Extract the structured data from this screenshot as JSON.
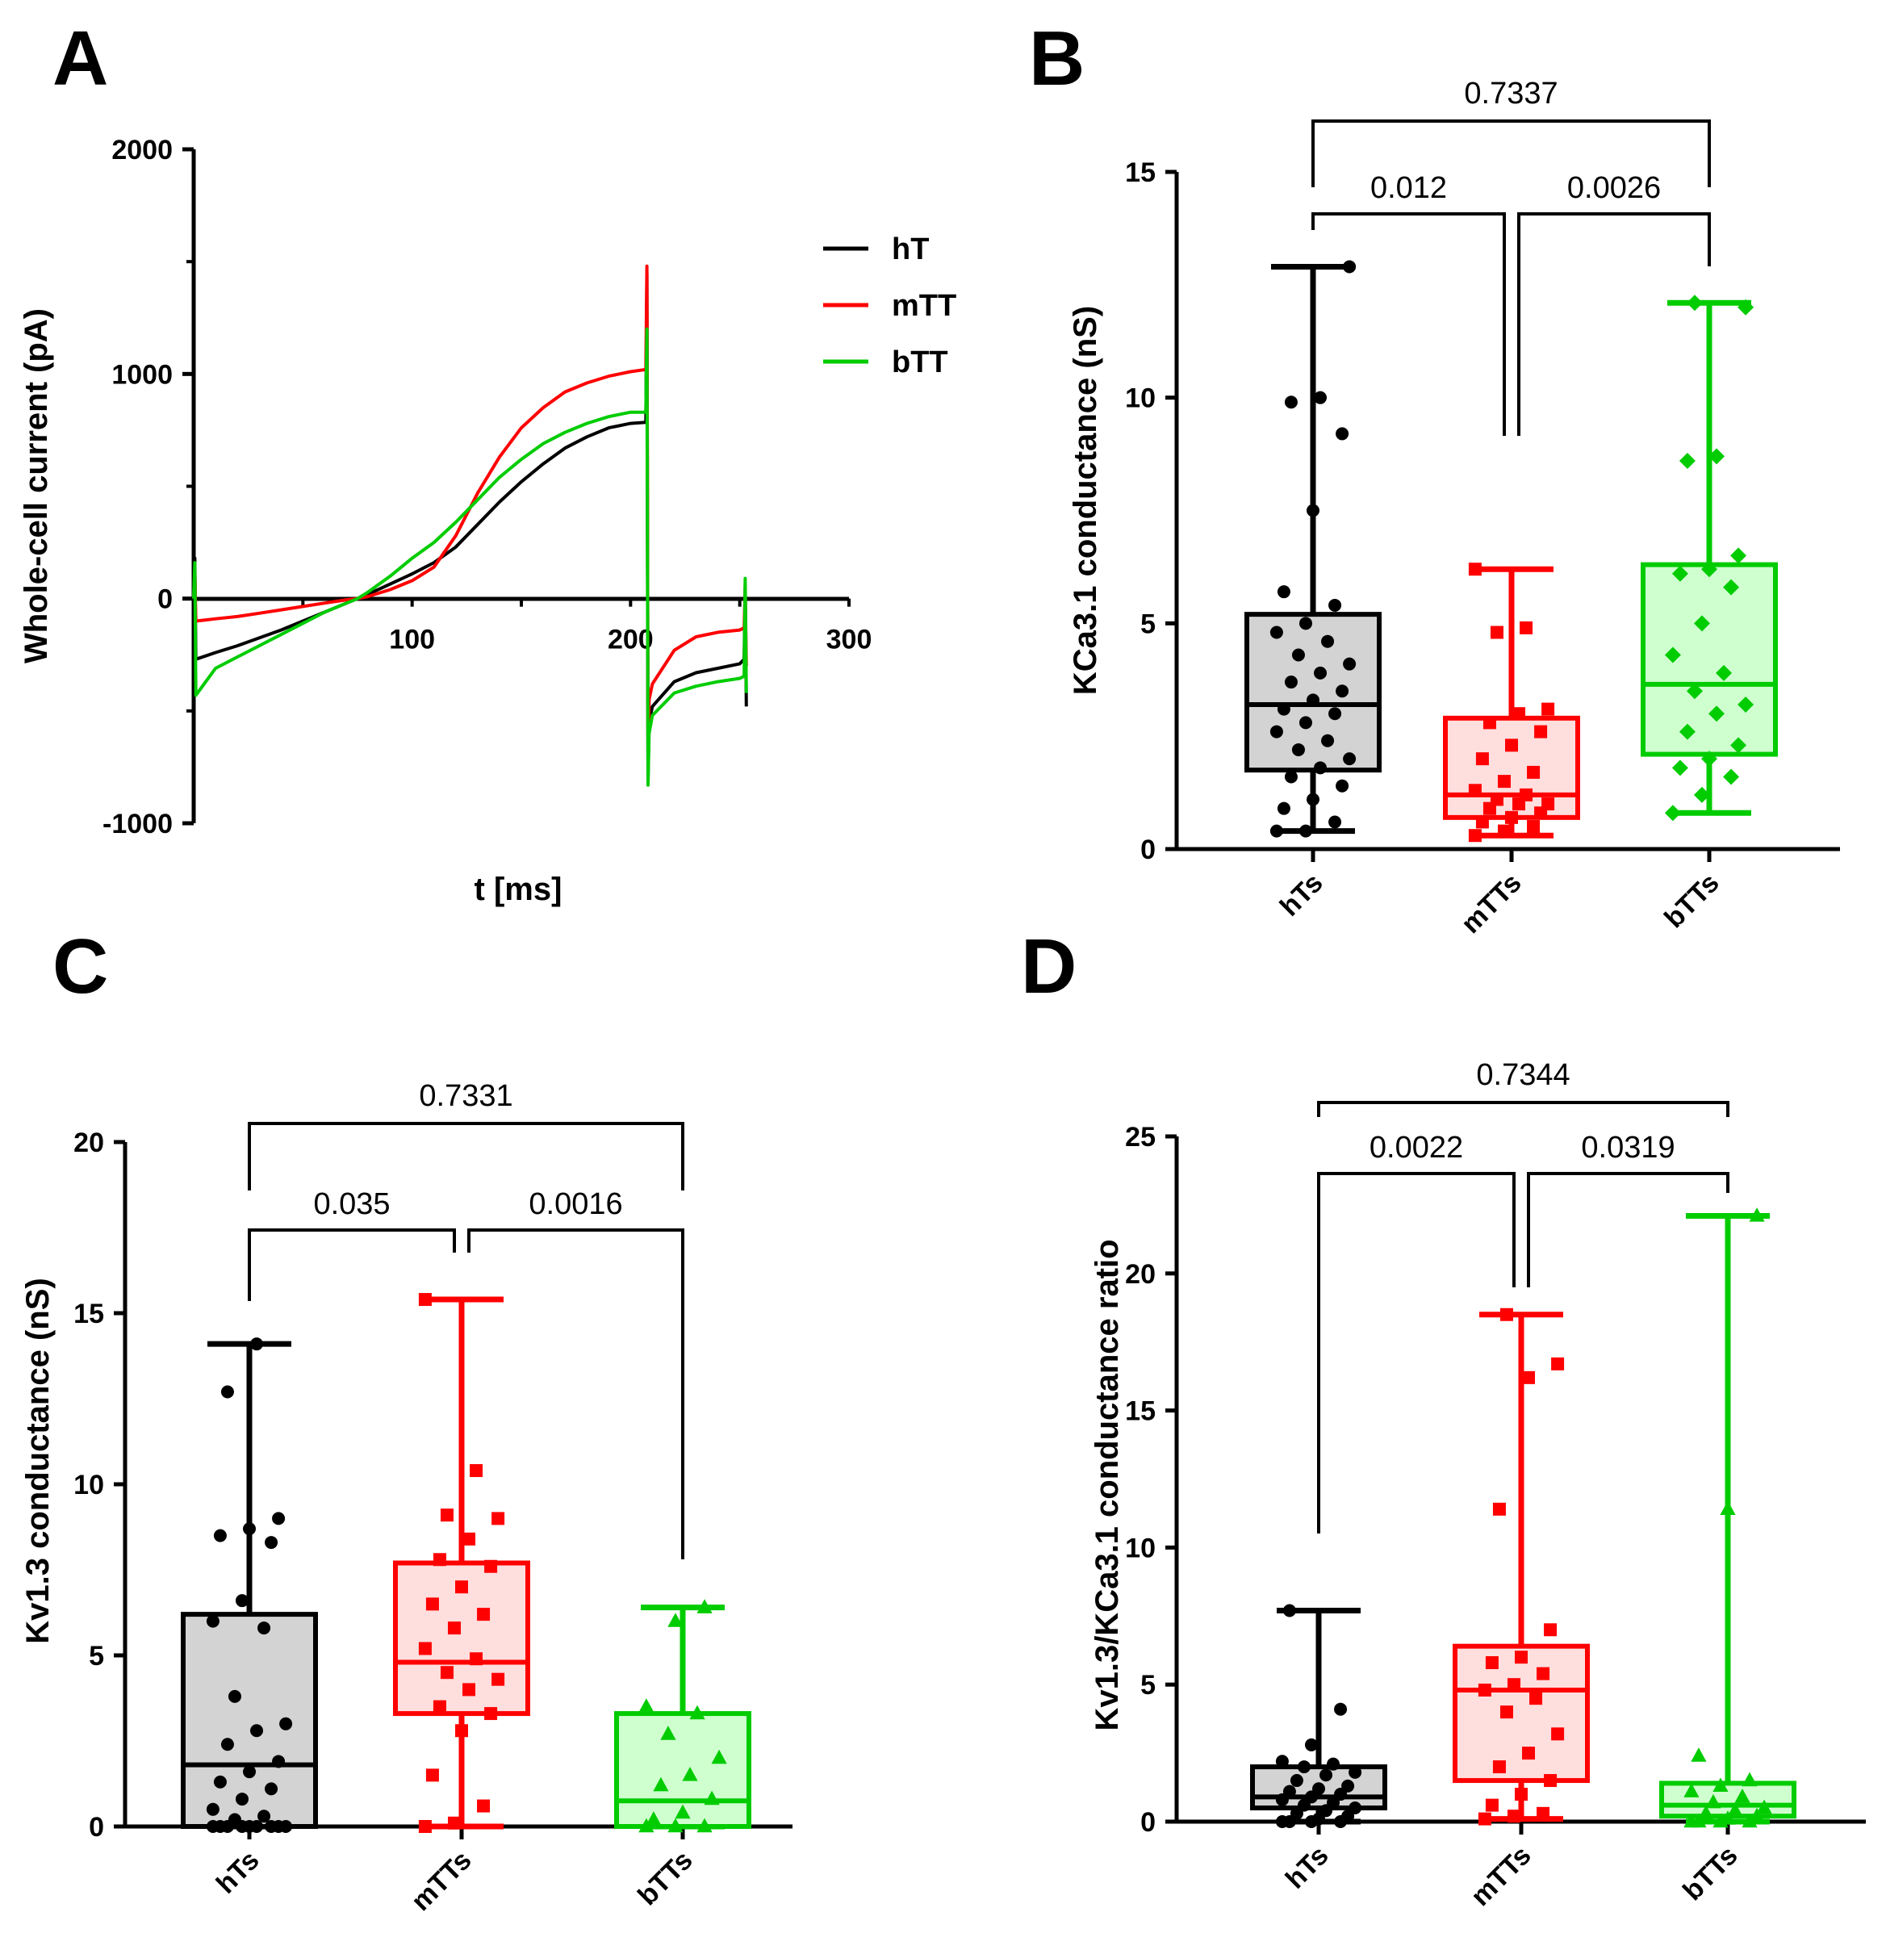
{
  "chart_data": [
    {
      "panel": "A",
      "type": "line",
      "xlabel": "t [ms]",
      "ylabel": "Whole-cell current (pA)",
      "xlim": [
        0,
        300
      ],
      "ylim": [
        -1000,
        2000
      ],
      "xticks": [
        100,
        200,
        300
      ],
      "yticks": [
        -1000,
        0,
        1000,
        2000
      ],
      "legend_position": "top-right",
      "series": [
        {
          "name": "hT",
          "color": "#000000",
          "x": [
            0,
            0.5,
            1,
            10,
            20,
            30,
            40,
            50,
            60,
            70,
            75,
            80,
            90,
            100,
            110,
            120,
            130,
            140,
            150,
            160,
            170,
            180,
            190,
            200,
            207,
            207.5,
            208,
            208.5,
            210,
            220,
            230,
            240,
            250,
            252,
            252.5,
            253
          ],
          "y": [
            0,
            180,
            -270,
            -240,
            -210,
            -175,
            -140,
            -100,
            -60,
            -20,
            0,
            20,
            65,
            110,
            160,
            230,
            330,
            430,
            520,
            600,
            670,
            720,
            760,
            780,
            785,
            1450,
            -800,
            -550,
            -480,
            -370,
            -330,
            -310,
            -290,
            -270,
            60,
            -480
          ]
        },
        {
          "name": "mTT",
          "color": "#ff0000",
          "x": [
            0,
            0.5,
            1,
            10,
            20,
            30,
            40,
            50,
            60,
            70,
            75,
            80,
            90,
            100,
            110,
            120,
            130,
            140,
            150,
            160,
            170,
            180,
            190,
            200,
            207,
            207.5,
            208,
            208.5,
            210,
            220,
            230,
            240,
            250,
            252,
            252.5,
            253
          ],
          "y": [
            0,
            120,
            -100,
            -90,
            -80,
            -65,
            -50,
            -35,
            -20,
            -5,
            0,
            10,
            40,
            80,
            140,
            280,
            470,
            630,
            760,
            850,
            920,
            960,
            990,
            1010,
            1020,
            1480,
            -700,
            -450,
            -380,
            -230,
            -170,
            -150,
            -140,
            -130,
            40,
            -300
          ]
        },
        {
          "name": "bTT",
          "color": "#00cc00",
          "x": [
            0,
            0.5,
            1,
            10,
            20,
            30,
            40,
            50,
            60,
            70,
            75,
            80,
            90,
            100,
            110,
            120,
            130,
            140,
            150,
            160,
            170,
            180,
            190,
            200,
            207,
            207.5,
            208,
            208.5,
            210,
            220,
            230,
            240,
            250,
            252,
            252.5,
            253
          ],
          "y": [
            0,
            160,
            -430,
            -310,
            -260,
            -210,
            -160,
            -110,
            -60,
            -20,
            0,
            30,
            100,
            180,
            250,
            340,
            440,
            540,
            620,
            690,
            740,
            780,
            810,
            830,
            830,
            1200,
            -830,
            -600,
            -520,
            -420,
            -390,
            -370,
            -355,
            -345,
            90,
            -420
          ]
        }
      ]
    },
    {
      "panel": "B",
      "type": "box",
      "ylabel": "KCa3.1 conductance (nS)",
      "ylim": [
        0,
        15
      ],
      "yticks": [
        0,
        5,
        10,
        15
      ],
      "categories": [
        "hTs",
        "mTTs",
        "bTTs"
      ],
      "groups": [
        {
          "name": "hTs",
          "color": "#000000",
          "fill": "#d3d3d3",
          "marker": "circle",
          "min": 0.4,
          "q1": 1.75,
          "median": 3.2,
          "q3": 5.2,
          "max": 12.9,
          "points": [
            0.4,
            0.4,
            0.6,
            0.9,
            1.1,
            1.4,
            1.6,
            1.8,
            2.0,
            2.2,
            2.4,
            2.6,
            2.8,
            3.0,
            3.1,
            3.3,
            3.5,
            3.7,
            3.9,
            4.1,
            4.3,
            4.6,
            4.8,
            5.0,
            5.4,
            5.7,
            7.5,
            9.2,
            9.9,
            10.0,
            12.9
          ]
        },
        {
          "name": "mTTs",
          "color": "#ff0000",
          "fill": "#ffdede",
          "marker": "square",
          "min": 0.3,
          "q1": 0.7,
          "median": 1.2,
          "q3": 2.9,
          "max": 6.2,
          "points": [
            0.3,
            0.4,
            0.5,
            0.6,
            0.7,
            0.8,
            0.9,
            1.0,
            1.0,
            1.1,
            1.2,
            1.3,
            1.5,
            1.7,
            2.0,
            2.3,
            2.6,
            2.8,
            3.0,
            3.1,
            4.8,
            4.9,
            6.2
          ]
        },
        {
          "name": "bTTs",
          "color": "#00cc00",
          "fill": "#cfffcf",
          "marker": "diamond",
          "min": 0.8,
          "q1": 2.1,
          "median": 3.65,
          "q3": 6.3,
          "max": 12.1,
          "points": [
            0.8,
            1.2,
            1.6,
            1.8,
            2.0,
            2.3,
            2.6,
            3.0,
            3.2,
            3.5,
            3.9,
            4.3,
            5.0,
            5.8,
            6.1,
            6.2,
            6.5,
            8.6,
            8.7,
            12.0,
            12.1
          ]
        }
      ],
      "comparisons": [
        {
          "between": [
            "hTs",
            "mTTs"
          ],
          "label": "0.012"
        },
        {
          "between": [
            "mTTs",
            "bTTs"
          ],
          "label": "0.0026"
        },
        {
          "between": [
            "hTs",
            "bTTs"
          ],
          "label": "0.7337"
        }
      ]
    },
    {
      "panel": "C",
      "type": "box",
      "ylabel": "Kv1.3 conductance (nS)",
      "ylim": [
        0,
        20
      ],
      "yticks": [
        0,
        5,
        10,
        15,
        20
      ],
      "categories": [
        "hTs",
        "mTTs",
        "bTTs"
      ],
      "groups": [
        {
          "name": "hTs",
          "color": "#000000",
          "fill": "#d3d3d3",
          "marker": "circle",
          "min": 0,
          "q1": 0,
          "median": 1.8,
          "q3": 6.2,
          "max": 14.1,
          "points": [
            0,
            0,
            0,
            0,
            0,
            0,
            0,
            0,
            0,
            0.2,
            0.3,
            0.5,
            0.8,
            1.1,
            1.3,
            1.6,
            1.9,
            2.4,
            2.8,
            3.0,
            3.8,
            5.8,
            6.0,
            6.6,
            8.3,
            8.5,
            8.7,
            9.0,
            12.7,
            14.1
          ]
        },
        {
          "name": "mTTs",
          "color": "#ff0000",
          "fill": "#ffdede",
          "marker": "square",
          "min": 0,
          "q1": 3.3,
          "median": 4.8,
          "q3": 7.7,
          "max": 15.4,
          "points": [
            0,
            0.1,
            0.6,
            1.5,
            2.8,
            3.3,
            3.5,
            4.0,
            4.3,
            4.5,
            4.9,
            5.2,
            5.8,
            6.2,
            6.5,
            7.0,
            7.6,
            7.8,
            8.4,
            9.0,
            9.1,
            10.4,
            15.4
          ]
        },
        {
          "name": "bTTs",
          "color": "#00cc00",
          "fill": "#cfffcf",
          "marker": "triangle",
          "min": 0,
          "q1": 0,
          "median": 0.75,
          "q3": 3.3,
          "max": 6.4,
          "points": [
            0,
            0,
            0,
            0.2,
            0.4,
            0.8,
            1.2,
            1.5,
            2.0,
            2.7,
            3.3,
            3.5,
            6.0,
            6.4
          ]
        }
      ],
      "comparisons": [
        {
          "between": [
            "hTs",
            "mTTs"
          ],
          "label": "0.035"
        },
        {
          "between": [
            "mTTs",
            "bTTs"
          ],
          "label": "0.0016"
        },
        {
          "between": [
            "hTs",
            "bTTs"
          ],
          "label": "0.7331"
        }
      ]
    },
    {
      "panel": "D",
      "type": "box",
      "ylabel": "Kv1.3/KCa3.1 conductance ratio",
      "ylim": [
        0,
        25
      ],
      "yticks": [
        0,
        5,
        10,
        15,
        20,
        25
      ],
      "categories": [
        "hTs",
        "mTTs",
        "bTTs"
      ],
      "groups": [
        {
          "name": "hTs",
          "color": "#000000",
          "fill": "#d3d3d3",
          "marker": "circle",
          "min": 0,
          "q1": 0.5,
          "median": 0.9,
          "q3": 2.0,
          "max": 7.7,
          "points": [
            0,
            0,
            0,
            0,
            0.1,
            0.2,
            0.3,
            0.4,
            0.5,
            0.6,
            0.7,
            0.8,
            0.9,
            1.0,
            1.1,
            1.2,
            1.3,
            1.5,
            1.7,
            1.8,
            2.0,
            2.1,
            2.2,
            2.8,
            4.1,
            7.7
          ]
        },
        {
          "name": "mTTs",
          "color": "#ff0000",
          "fill": "#ffdede",
          "marker": "square",
          "min": 0.1,
          "q1": 1.5,
          "median": 4.8,
          "q3": 6.4,
          "max": 18.5,
          "points": [
            0.1,
            0.2,
            0.3,
            0.6,
            1.0,
            1.5,
            2.0,
            2.5,
            3.2,
            4.0,
            4.5,
            4.8,
            5.0,
            5.4,
            5.8,
            6.0,
            7.0,
            11.4,
            16.2,
            16.7,
            18.5
          ]
        },
        {
          "name": "bTTs",
          "color": "#00cc00",
          "fill": "#cfffcf",
          "marker": "triangle",
          "min": 0,
          "q1": 0.2,
          "median": 0.6,
          "q3": 1.4,
          "max": 22.1,
          "points": [
            0,
            0,
            0,
            0,
            0.1,
            0.2,
            0.3,
            0.4,
            0.5,
            0.7,
            0.9,
            1.1,
            1.3,
            1.5,
            2.4,
            11.4,
            22.1
          ]
        }
      ],
      "comparisons": [
        {
          "between": [
            "hTs",
            "mTTs"
          ],
          "label": "0.0022"
        },
        {
          "between": [
            "mTTs",
            "bTTs"
          ],
          "label": "0.0319"
        },
        {
          "between": [
            "hTs",
            "bTTs"
          ],
          "label": "0.7344"
        }
      ]
    }
  ]
}
